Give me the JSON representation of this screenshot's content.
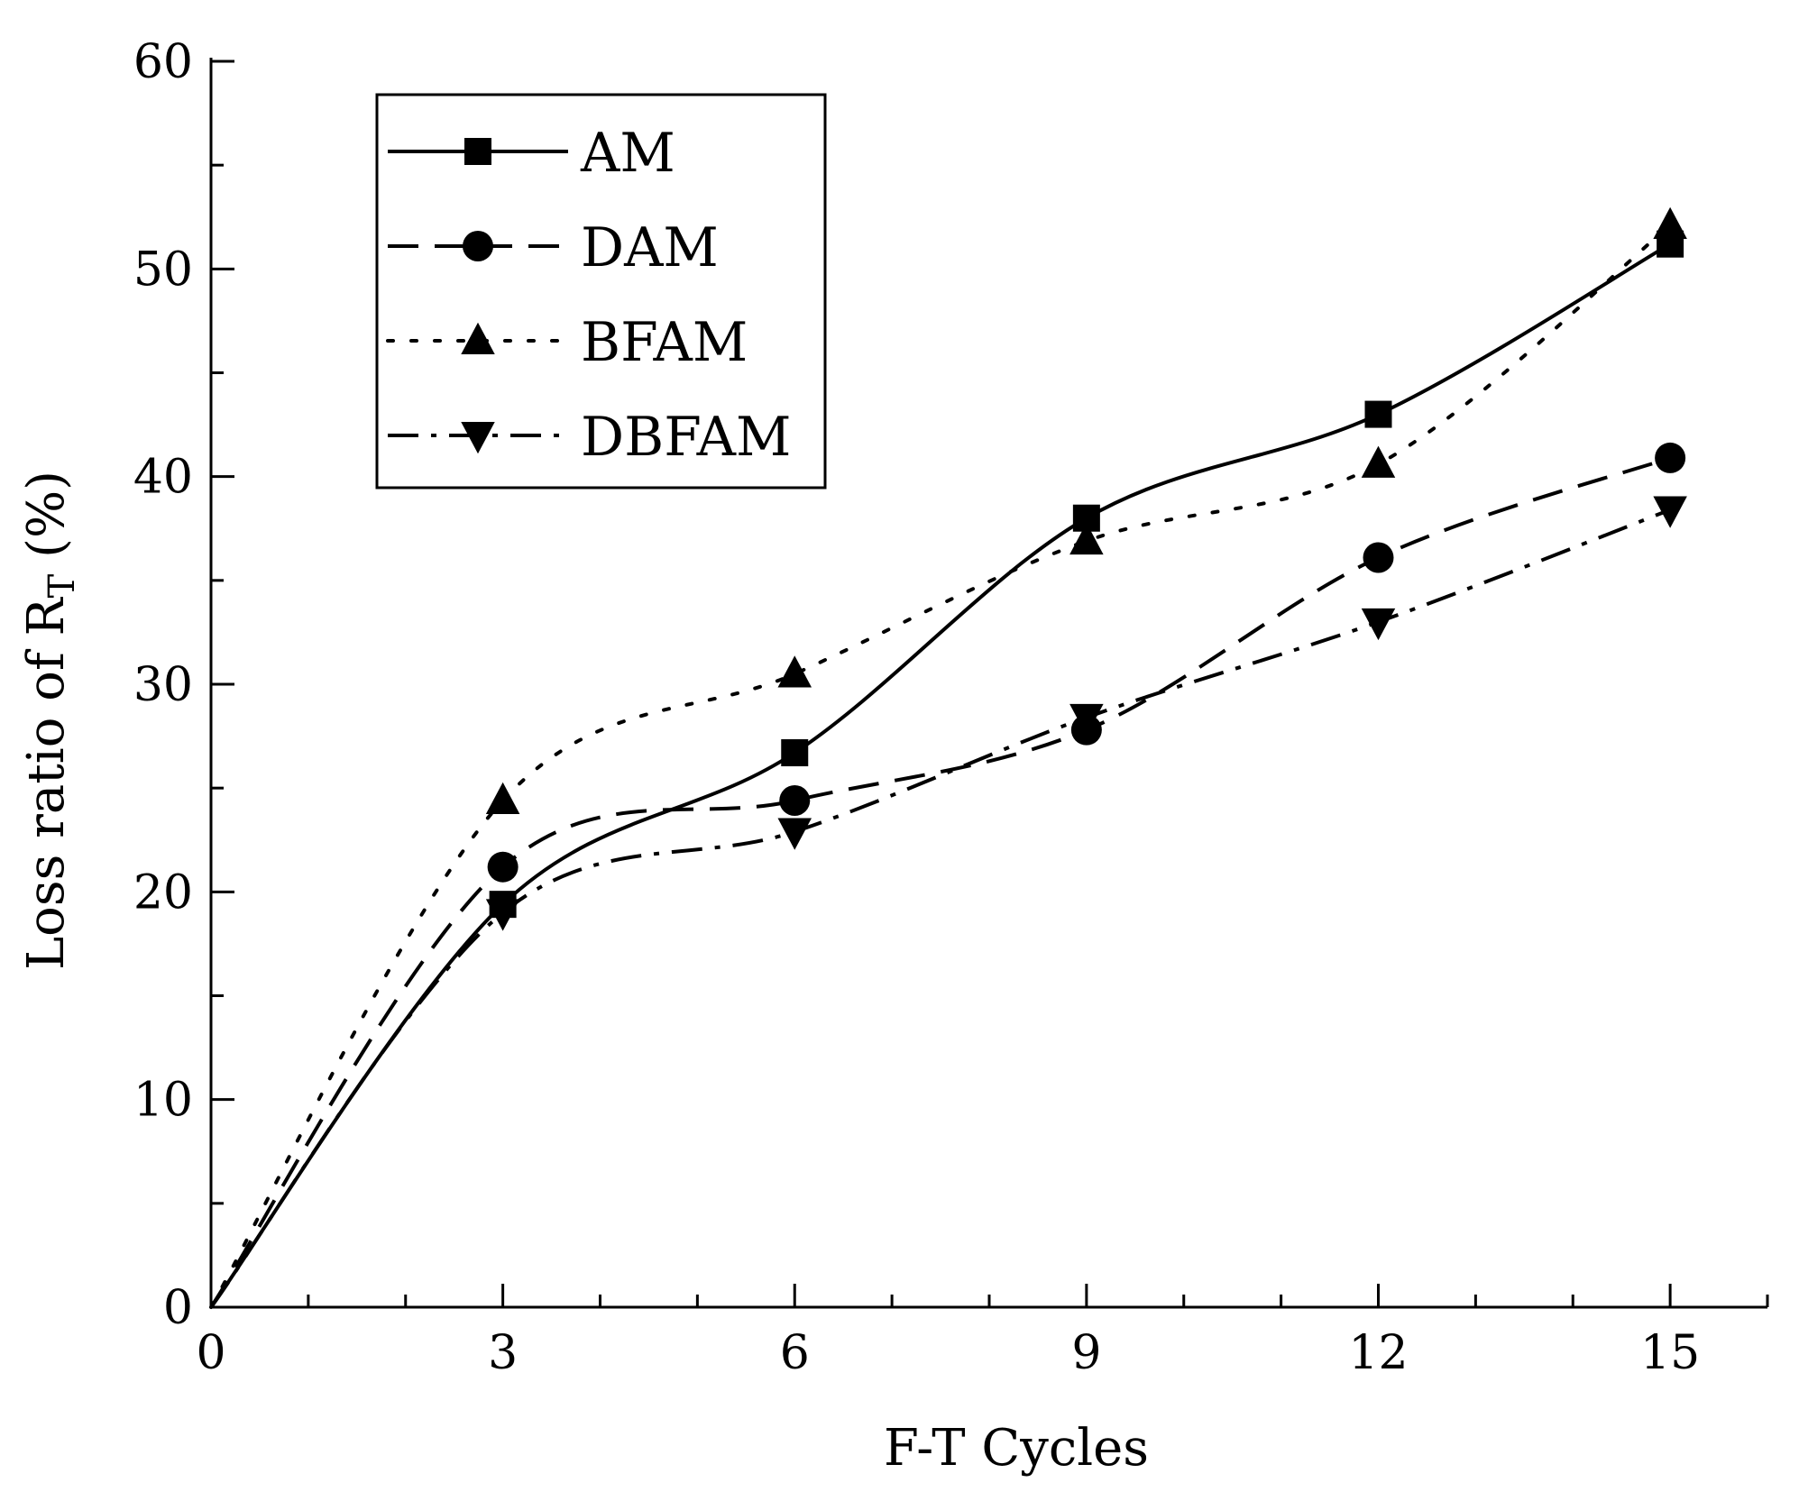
{
  "chart_data": {
    "type": "line",
    "title": "",
    "xlabel": "F-T Cycles",
    "ylabel": {
      "prefix": "Loss ratio of R",
      "subscript": "T",
      "suffix": " (%)"
    },
    "x": [
      0,
      3,
      6,
      9,
      12,
      15
    ],
    "xlim": [
      0,
      16
    ],
    "ylim": [
      0,
      60
    ],
    "xticks": [
      0,
      3,
      6,
      9,
      12,
      15
    ],
    "yticks": [
      0,
      10,
      20,
      30,
      40,
      50,
      60
    ],
    "grid": false,
    "legend_position": "top-left",
    "series": [
      {
        "name": "AM",
        "marker": "square",
        "line": "solid",
        "values": [
          0,
          19.4,
          26.7,
          38.0,
          43.0,
          51.2
        ]
      },
      {
        "name": "DAM",
        "marker": "circle",
        "line": "dashed",
        "values": [
          0,
          21.2,
          24.4,
          27.8,
          36.1,
          40.9
        ]
      },
      {
        "name": "BFAM",
        "marker": "triangle-up",
        "line": "dotted",
        "values": [
          0,
          24.4,
          30.5,
          36.9,
          40.6,
          52.1
        ]
      },
      {
        "name": "DBFAM",
        "marker": "triangle-down",
        "line": "dashdot",
        "values": [
          0,
          19.0,
          22.9,
          28.4,
          33.0,
          38.4
        ]
      }
    ]
  }
}
